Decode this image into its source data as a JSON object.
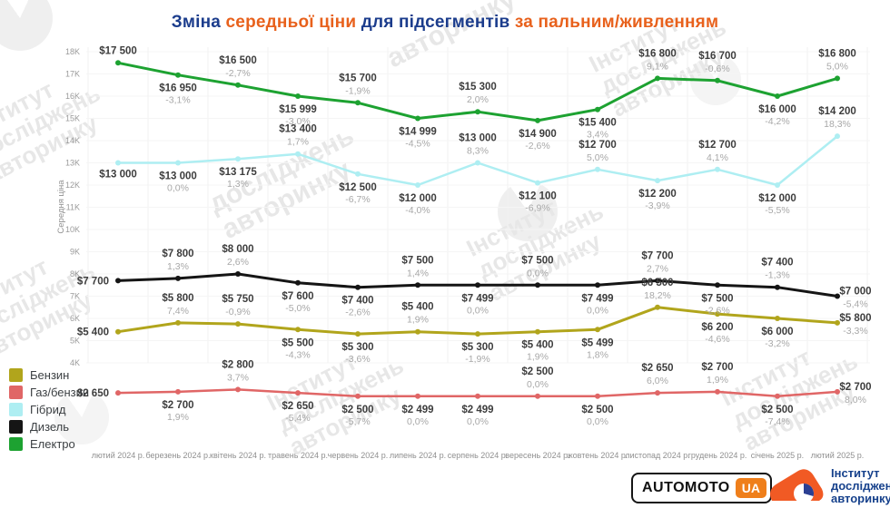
{
  "title": {
    "segments": [
      {
        "text": "Зміна ",
        "color": "#1b3c8c"
      },
      {
        "text": "середньої ціни ",
        "color": "#e8611c"
      },
      {
        "text": "для підсегментів ",
        "color": "#1b3c8c"
      },
      {
        "text": "за пальним/живленням",
        "color": "#e8611c"
      }
    ]
  },
  "chart_data": {
    "type": "line",
    "title": "Зміна середньої ціни для підсегментів за пальним/живленням",
    "xlabel": "",
    "ylabel": "Середня ціна",
    "ylim": [
      4000,
      18000
    ],
    "y_ticks": [
      "18K",
      "17K",
      "16K",
      "15K",
      "14K",
      "13K",
      "12K",
      "11K",
      "10K",
      "9K",
      "8K",
      "7K",
      "6K",
      "5K",
      "4K"
    ],
    "grid": true,
    "legend_position": "bottom-left",
    "categories": [
      "лютий 2024 р.",
      "березень 2024 р.",
      "квітень 2024 р.",
      "травень 2024 р.",
      "червень 2024 р.",
      "липень 2024 р.",
      "серпень 2024 р.",
      "вересень 2024 р.",
      "жовтень 2024 р.",
      "листопад 2024 р.",
      "грудень 2024 р.",
      "січень 2025 р.",
      "лютий 2025 р."
    ],
    "series": [
      {
        "name": "Бензин",
        "color": "#b1a51c",
        "width": 3,
        "values": [
          5400,
          5800,
          5750,
          5500,
          5300,
          5400,
          5300,
          5400,
          5499,
          6500,
          6200,
          6000,
          5800
        ],
        "labels": [
          "$5 400",
          "$5 800",
          "$5 750",
          "$5 500",
          "$5 300",
          "$5 400",
          "$5 300",
          "$5 400",
          "$5 499",
          "$6 500",
          "$6 200",
          "$6 000",
          "$5 800"
        ],
        "pcts": [
          "",
          "7,4%",
          "-0,9%",
          "-4,3%",
          "-3,6%",
          "1,9%",
          "-1,9%",
          "1,9%",
          "1,8%",
          "18,2%",
          "-4,6%",
          "-3,2%",
          "-3,3%"
        ],
        "pos": [
          "left",
          "above",
          "above",
          "below",
          "below",
          "above",
          "below",
          "below",
          "below",
          "above",
          "below",
          "below",
          "right"
        ]
      },
      {
        "name": "Газ/бензин",
        "color": "#e06666",
        "width": 2.5,
        "values": [
          2650,
          2700,
          2800,
          2650,
          2500,
          2499,
          2499,
          2500,
          2500,
          2650,
          2700,
          2500,
          2700
        ],
        "labels": [
          "$2 650",
          "$2 700",
          "$2 800",
          "$2 650",
          "$2 500",
          "$2 499",
          "$2 499",
          "$2 500",
          "$2 500",
          "$2 650",
          "$2 700",
          "$2 500",
          "$2 700"
        ],
        "pcts": [
          "",
          "1,9%",
          "3,7%",
          "-5,4%",
          "-5,7%",
          "0,0%",
          "0,0%",
          "0,0%",
          "0,0%",
          "6,0%",
          "1,9%",
          "-7,4%",
          "8,0%"
        ],
        "pos": [
          "left",
          "below",
          "above",
          "below",
          "below",
          "below",
          "below",
          "above",
          "below",
          "above",
          "above",
          "below",
          "right"
        ]
      },
      {
        "name": "Гібрид",
        "color": "#aeeef2",
        "width": 2.5,
        "values": [
          13000,
          13000,
          13175,
          13400,
          12500,
          12000,
          13000,
          12100,
          12700,
          12200,
          12700,
          12000,
          14200
        ],
        "labels": [
          "$13 000",
          "$13 000",
          "$13 175",
          "$13 400",
          "$12 500",
          "$12 000",
          "$13 000",
          "$12 100",
          "$12 700",
          "$12 200",
          "$12 700",
          "$12 000",
          "$14 200"
        ],
        "pcts": [
          "",
          "0,0%",
          "1,3%",
          "1,7%",
          "-6,7%",
          "-4,0%",
          "8,3%",
          "-6,9%",
          "5,0%",
          "-3,9%",
          "4,1%",
          "-5,5%",
          "18,3%"
        ],
        "pos": [
          "below",
          "below",
          "below",
          "above",
          "below",
          "below",
          "above",
          "below",
          "above",
          "below",
          "above",
          "below",
          "above"
        ]
      },
      {
        "name": "Дизель",
        "color": "#151515",
        "width": 3,
        "values": [
          7700,
          7800,
          8000,
          7600,
          7400,
          7500,
          7499,
          7500,
          7499,
          7700,
          7500,
          7400,
          7000
        ],
        "labels": [
          "$7 700",
          "$7 800",
          "$8 000",
          "$7 600",
          "$7 400",
          "$7 500",
          "$7 499",
          "$7 500",
          "$7 499",
          "$7 700",
          "$7 500",
          "$7 400",
          "$7 000"
        ],
        "pcts": [
          "",
          "1,3%",
          "2,6%",
          "-5,0%",
          "-2,6%",
          "1,4%",
          "0,0%",
          "0,0%",
          "0,0%",
          "2,7%",
          "-2,6%",
          "-1,3%",
          "-5,4%"
        ],
        "pos": [
          "left",
          "above",
          "above",
          "below",
          "below",
          "above",
          "below",
          "above",
          "below",
          "above",
          "below",
          "above",
          "right"
        ]
      },
      {
        "name": "Електро",
        "color": "#1da231",
        "width": 3,
        "values": [
          17500,
          16950,
          16500,
          15999,
          15700,
          14999,
          15300,
          14900,
          15400,
          16800,
          16700,
          16000,
          16800
        ],
        "labels": [
          "$17 500",
          "$16 950",
          "$16 500",
          "$15 999",
          "$15 700",
          "$14 999",
          "$15 300",
          "$14 900",
          "$15 400",
          "$16 800",
          "$16 700",
          "$16 000",
          "$16 800"
        ],
        "pcts": [
          "",
          "-3,1%",
          "-2,7%",
          "-3,0%",
          "-1,9%",
          "-4,5%",
          "2,0%",
          "-2,6%",
          "3,4%",
          "9,1%",
          "-0,6%",
          "-4,2%",
          "5,0%"
        ],
        "pos": [
          "above",
          "below",
          "above",
          "below",
          "above",
          "below",
          "above",
          "below",
          "below",
          "above",
          "above",
          "below",
          "above"
        ]
      }
    ]
  },
  "watermark": {
    "full": "Інститут досліджень авторинку",
    "words": [
      "Інститут",
      "досліджень",
      "авторинку"
    ]
  },
  "footer": {
    "automoto": {
      "name": "AUTOMOTO",
      "badge": "UA"
    },
    "institute": {
      "lines": [
        "Інститут",
        "досліджень",
        "авторинку"
      ]
    }
  }
}
